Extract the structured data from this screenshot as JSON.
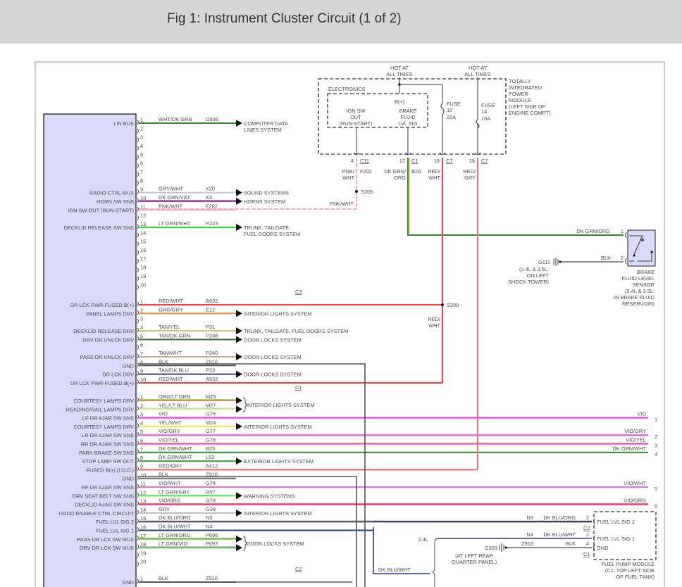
{
  "header": {
    "title": "Fig 1: Instrument Cluster Circuit (1 of 2)"
  },
  "connector_labels": {
    "c3": "C3",
    "c1": "C1",
    "c2": "C2"
  },
  "groups": [
    {
      "key": "a",
      "rows": [
        {
          "p": "1",
          "l": "LIN BUS",
          "c": "WHT/DK GRN",
          "n": "D506",
          "w": [
            "#2e8b2e"
          ],
          "d": [
            "COMPUTER DATA",
            "LINES SYSTEM"
          ]
        },
        {
          "p": "2"
        },
        {
          "p": "3"
        },
        {
          "p": "4"
        },
        {
          "p": "5"
        },
        {
          "p": "6"
        },
        {
          "p": "7"
        },
        {
          "p": "8"
        },
        {
          "p": "9",
          "l": "RADIO CTRL MUX",
          "c": "GRY/WHT",
          "n": "X20",
          "w": [
            "#c8c8c8"
          ],
          "d": [
            "SOUND SYSTEMS"
          ]
        },
        {
          "p": "10",
          "l": "HORN SW SNS",
          "c": "DK GRN/VIO",
          "n": "X3",
          "w": [
            "#e020e0",
            "#2e7d2e"
          ],
          "d": [
            "HORNS SYSTEM"
          ]
        },
        {
          "p": "11",
          "l": "IGN SW OUT (RUN-START)",
          "c": "PNK/WHT",
          "n": "F202",
          "w": [
            "#f6a8c4"
          ],
          "to": "s205"
        },
        {
          "p": "12"
        },
        {
          "p": "13",
          "l": "DECKLID RELEASE SW SNS",
          "c": "LT GRN/WHT",
          "n": "P223",
          "w": [
            "#22e022"
          ],
          "d": [
            "TRUNK, TAILGATE,",
            "FUEL DOORS SYSTEM"
          ]
        },
        {
          "p": "14"
        },
        {
          "p": "15"
        },
        {
          "p": "16"
        },
        {
          "p": "17"
        },
        {
          "p": "18"
        },
        {
          "p": "19"
        },
        {
          "p": "20"
        }
      ]
    },
    {
      "key": "c3",
      "rows": [
        {
          "p": "1",
          "l": "DR LCK PWR-FUSED B(+)",
          "c": "RED/WHT",
          "n": "A932",
          "w": [
            "#ff3a3a"
          ],
          "to": "s200"
        },
        {
          "p": "2",
          "l": "PANEL LAMPS DRV",
          "c": "ORG/GRY",
          "n": "E12",
          "w": [
            "#e58f3a"
          ],
          "d": [
            "INTERIOR LIGHTS SYSTEM"
          ]
        },
        {
          "p": "3"
        },
        {
          "p": "4",
          "l": "DECKLID RELEASE DRV",
          "c": "TAN/YEL",
          "n": "P31",
          "w": [
            "#d8c46a"
          ],
          "d": [
            "TRUNK, TAILGATE, FUEL DOORS SYSTEM"
          ]
        },
        {
          "p": "5",
          "l": "DRV DR UNLCK DRV",
          "c": "TAN/DK GRN",
          "n": "P238",
          "w": [
            "#2e6e2e"
          ],
          "d": [
            "DOOR LOCKS SYSTEM"
          ]
        },
        {
          "p": "6"
        },
        {
          "p": "7",
          "l": "PASS DR UNLCK DRV",
          "c": "TAN/WHT",
          "n": "P240",
          "w": [
            "#c8b090"
          ],
          "d": [
            "DOOR LOCKS SYSTEM"
          ]
        },
        {
          "p": "8",
          "l": "GND",
          "c": "BLK",
          "n": "Z910",
          "w": [
            "#555555"
          ],
          "to": "gnd1"
        },
        {
          "p": "9",
          "l": "DR LCK DRV",
          "c": "TAN/DK BLU",
          "n": "P33",
          "w": [
            "#3a4a80"
          ],
          "d": [
            "DOOR LOCKS SYSTEM"
          ]
        },
        {
          "p": "10",
          "l": "DR LCK PWR-FUSED B(+)",
          "c": "RED/WHT",
          "n": "A932",
          "w": [
            "#ff3a3a"
          ],
          "to": "redwht"
        }
      ]
    },
    {
      "key": "c1",
      "rows": [
        {
          "p": "1",
          "l": "COURTESY LAMPS DRV",
          "c": "ORG/LT GRN",
          "n": "M25",
          "w": [
            "#e58f3a",
            "#40d040"
          ],
          "d": [
            "INTERIOR LIGHTS SYSTEM"
          ],
          "brace": true
        },
        {
          "p": "2",
          "l": "READING/RAIL LAMPS DRV",
          "c": "YEL/LT BLU",
          "n": "M27",
          "w": [
            "#f0f060",
            "#80d0ff"
          ],
          "arrow": true
        },
        {
          "p": "3",
          "l": "LF DR AJAR SW SNS",
          "c": "VIO",
          "n": "G75",
          "w": [
            "#ff20ff"
          ],
          "r": {
            "label": "VIO",
            "num": "1"
          }
        },
        {
          "p": "4",
          "l": "COURTESY LAMPS DRV",
          "c": "YEL/WHT",
          "n": "M24",
          "w": [
            "#f2e24a"
          ],
          "d": [
            "INTERIOR LIGHTS SYSTEM"
          ]
        },
        {
          "p": "5",
          "l": "LR DR AJAR SW SNS",
          "c": "VIO/GRY",
          "n": "G77",
          "w": [
            "#ff40ff",
            "#cccccc"
          ],
          "r": {
            "label": "VIO/GRY",
            "num": "2"
          }
        },
        {
          "p": "6",
          "l": "RR DR AJAR SW SNS",
          "c": "VIO/YEL",
          "n": "G76",
          "w": [
            "#ff20ff",
            "#f0e040"
          ],
          "r": {
            "label": "VIO/YEL",
            "num": "3"
          }
        },
        {
          "p": "7",
          "l": "PARK BRAKE SW SNS",
          "c": "DK GRN/WHT",
          "n": "B25",
          "w": [
            "#2e8b2e"
          ],
          "r": {
            "label": "DK GRN/WHT",
            "num": "4"
          }
        },
        {
          "p": "8",
          "l": "STOP LAMP SW OUT",
          "c": "DK GRN/WHT",
          "n": "L53",
          "w": [
            "#3e9b3e"
          ],
          "d": [
            "EXTERIOR LIGHTS SYSTEM"
          ]
        },
        {
          "p": "9",
          "l": "FUSED B(+) (I.O.D.)",
          "c": "RED/GRY",
          "n": "A412",
          "w": [
            "#f06060"
          ],
          "to": "redgry"
        },
        {
          "p": "10",
          "l": "GND",
          "c": "BLK",
          "n": "Z910",
          "w": [
            "#666666"
          ],
          "to": "gnd2"
        },
        {
          "p": "11",
          "l": "RF DR AJAR SW SNS",
          "c": "VIO/WHT",
          "n": "G74",
          "w": [
            "#ff60f0"
          ],
          "r": {
            "label": "VIO/WHT",
            "num": "5"
          }
        },
        {
          "p": "12",
          "l": "DRV SEAT BELT SW SNS",
          "c": "LT GRN/GRY",
          "n": "R57",
          "w": [
            "#40f040"
          ],
          "d": [
            "WARNING SYSTEMS"
          ]
        },
        {
          "p": "13",
          "l": "DECKLID AJAR SW SNS",
          "c": "VIO/ORG",
          "n": "G78",
          "w": [
            "#ff2090",
            "#ff7040"
          ],
          "r": {
            "label": "VIO/ORG",
            "num": "6"
          }
        },
        {
          "p": "14",
          "l": "UGDO ENABLE CTRL CIRCUIT",
          "c": "GRY",
          "n": "G38",
          "w": [
            "#bbbbbb"
          ],
          "d": [
            "INTERIOR LIGHTS SYSTEM"
          ]
        },
        {
          "p": "15",
          "l": "FUEL LVL SIG 2",
          "c": "DK BLU/ORG",
          "n": "N5",
          "w": [
            "#2a3a80",
            "#e0a060"
          ],
          "to": "fuel2"
        },
        {
          "p": "16",
          "l": "FUEL LVL SIG 1",
          "c": "DK BLU/WHT",
          "n": "N4",
          "w": [
            "#2a3a80"
          ],
          "to": "fuel1"
        },
        {
          "p": "17",
          "l": "PASS DR LCK SW MUX",
          "c": "LT GRN/ORG",
          "n": "P696",
          "w": [
            "#40e040",
            "#e09030"
          ],
          "d": [
            "DOOR LOCKS SYSTEM"
          ],
          "brace": true
        },
        {
          "p": "18",
          "l": "DRV DR LCK SW MUX",
          "c": "LT GRN/VIO",
          "n": "P697",
          "w": [
            "#40e040",
            "#c060c0"
          ],
          "arrow": true
        },
        {
          "p": "19"
        },
        {
          "p": "20"
        }
      ]
    },
    {
      "key": "c2",
      "rows": [
        {
          "p": "1",
          "l": "GND",
          "c": "BLK",
          "n": "Z910",
          "w": [
            "#555555"
          ],
          "to": "gnd3"
        }
      ]
    }
  ],
  "power_module": {
    "hot1": [
      "HOT AT",
      "ALL TIMES"
    ],
    "hot2": [
      "HOT AT",
      "ALL TIMES"
    ],
    "title": [
      "TOTALLY",
      "INTEGRATED",
      "POWER",
      "MODULE",
      "(LEFT SIDE OF",
      "ENGINE COMPT)"
    ],
    "electronics": "ELECTRONICS",
    "bplus": "B(+)",
    "ign": [
      "IGN SW",
      "OUT",
      "(RUN-START)"
    ],
    "brake": [
      "BRAKE",
      "FLUID",
      "LVL SIG"
    ],
    "fuse10": [
      "FUSE",
      "10",
      "20A"
    ],
    "fuse14": [
      "FUSE",
      "14",
      "10A"
    ],
    "pins": [
      {
        "pin": "4",
        "conn": "C11",
        "wire": [
          "PNK/",
          "WHT"
        ],
        "circ": "F202"
      },
      {
        "pin": "12",
        "conn": "C1",
        "wire": [
          "DK GRN/",
          "ORG"
        ],
        "circ": "B20"
      },
      {
        "pin": "18",
        "conn": "C7",
        "wire": [
          "RED/",
          "WHT"
        ],
        "circ": ""
      },
      {
        "pin": "16",
        "conn": "C7",
        "wire": [
          "RED/",
          "GRY"
        ],
        "circ": ""
      }
    ],
    "s205": "S205",
    "pnkwht": "PNK/WHT",
    "s200": "S200",
    "redwht": [
      "RED/",
      "WHT"
    ]
  },
  "brake_sensor": {
    "pin1": "1",
    "pin2": "2",
    "wire1": "DK GRN/ORG",
    "wire2": "BLK",
    "ground": "G111",
    "ground_note": [
      "(2.4L & 3.5L:",
      "ON LEFT",
      "SHOCK TOWER)"
    ],
    "name": [
      "BRAKE",
      "FLUID LEVEL",
      "SENSOR",
      "(2.4L & 3.5L:",
      "IN BRAKE FLUID",
      "RESERVOIR)"
    ]
  },
  "fuel_pump": {
    "rows": [
      {
        "circ": "N5",
        "wire": "DK BLU/ORG",
        "pin": "2",
        "label": "FUEL LVL SIG 2",
        "conn": "C2"
      },
      {
        "circ": "N4",
        "wire": "DK BLU/WHT",
        "pin": "2",
        "label": "FUEL LVL SIG 1",
        "conn": ""
      },
      {
        "circ": "Z916",
        "wire": "BLK",
        "pin": "4",
        "label": "GND",
        "conn": "C1"
      }
    ],
    "engine": "2.4L",
    "ground": "G303",
    "ground_note": [
      "(AT LEFT REAR",
      "QUARTER PANEL)"
    ],
    "name": [
      "FUEL PUMP MODULE",
      "(C1: TOP LEFT SIDE",
      "OF FUEL TANK)"
    ],
    "dkbluwht": "DK BLU/WHT"
  }
}
